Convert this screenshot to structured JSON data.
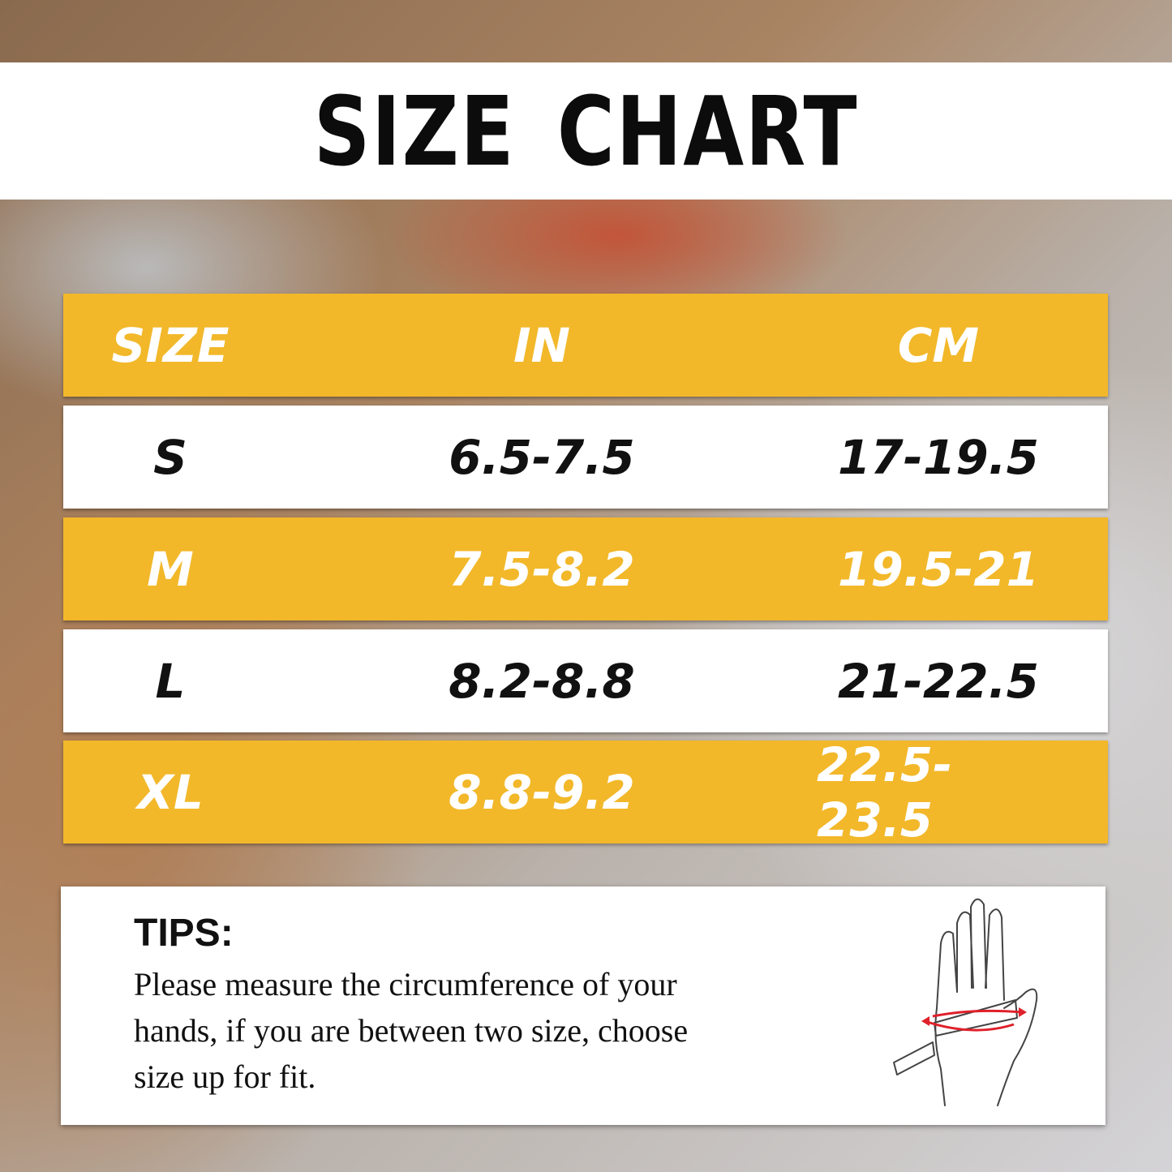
{
  "title": "SIZE CHART",
  "table": {
    "headers": [
      "SIZE",
      "IN",
      "CM"
    ],
    "rows": [
      {
        "size": "S",
        "in": "6.5-7.5",
        "cm": "17-19.5"
      },
      {
        "size": "M",
        "in": "7.5-8.2",
        "cm": "19.5-21"
      },
      {
        "size": "L",
        "in": "8.2-8.8",
        "cm": "21-22.5"
      },
      {
        "size": "XL",
        "in": "8.8-9.2",
        "cm": "22.5-23.5"
      }
    ]
  },
  "tips": {
    "heading": "TIPS:",
    "lines": [
      "Please measure the circumference of your",
      "hands, if you are between two size, choose",
      "size up for fit."
    ]
  },
  "colors": {
    "accent": "#f2b82a",
    "row_alt": "#ffffff",
    "measure_arrow": "#e0202a"
  },
  "icons": {
    "illustration": "hand-measure-icon"
  }
}
